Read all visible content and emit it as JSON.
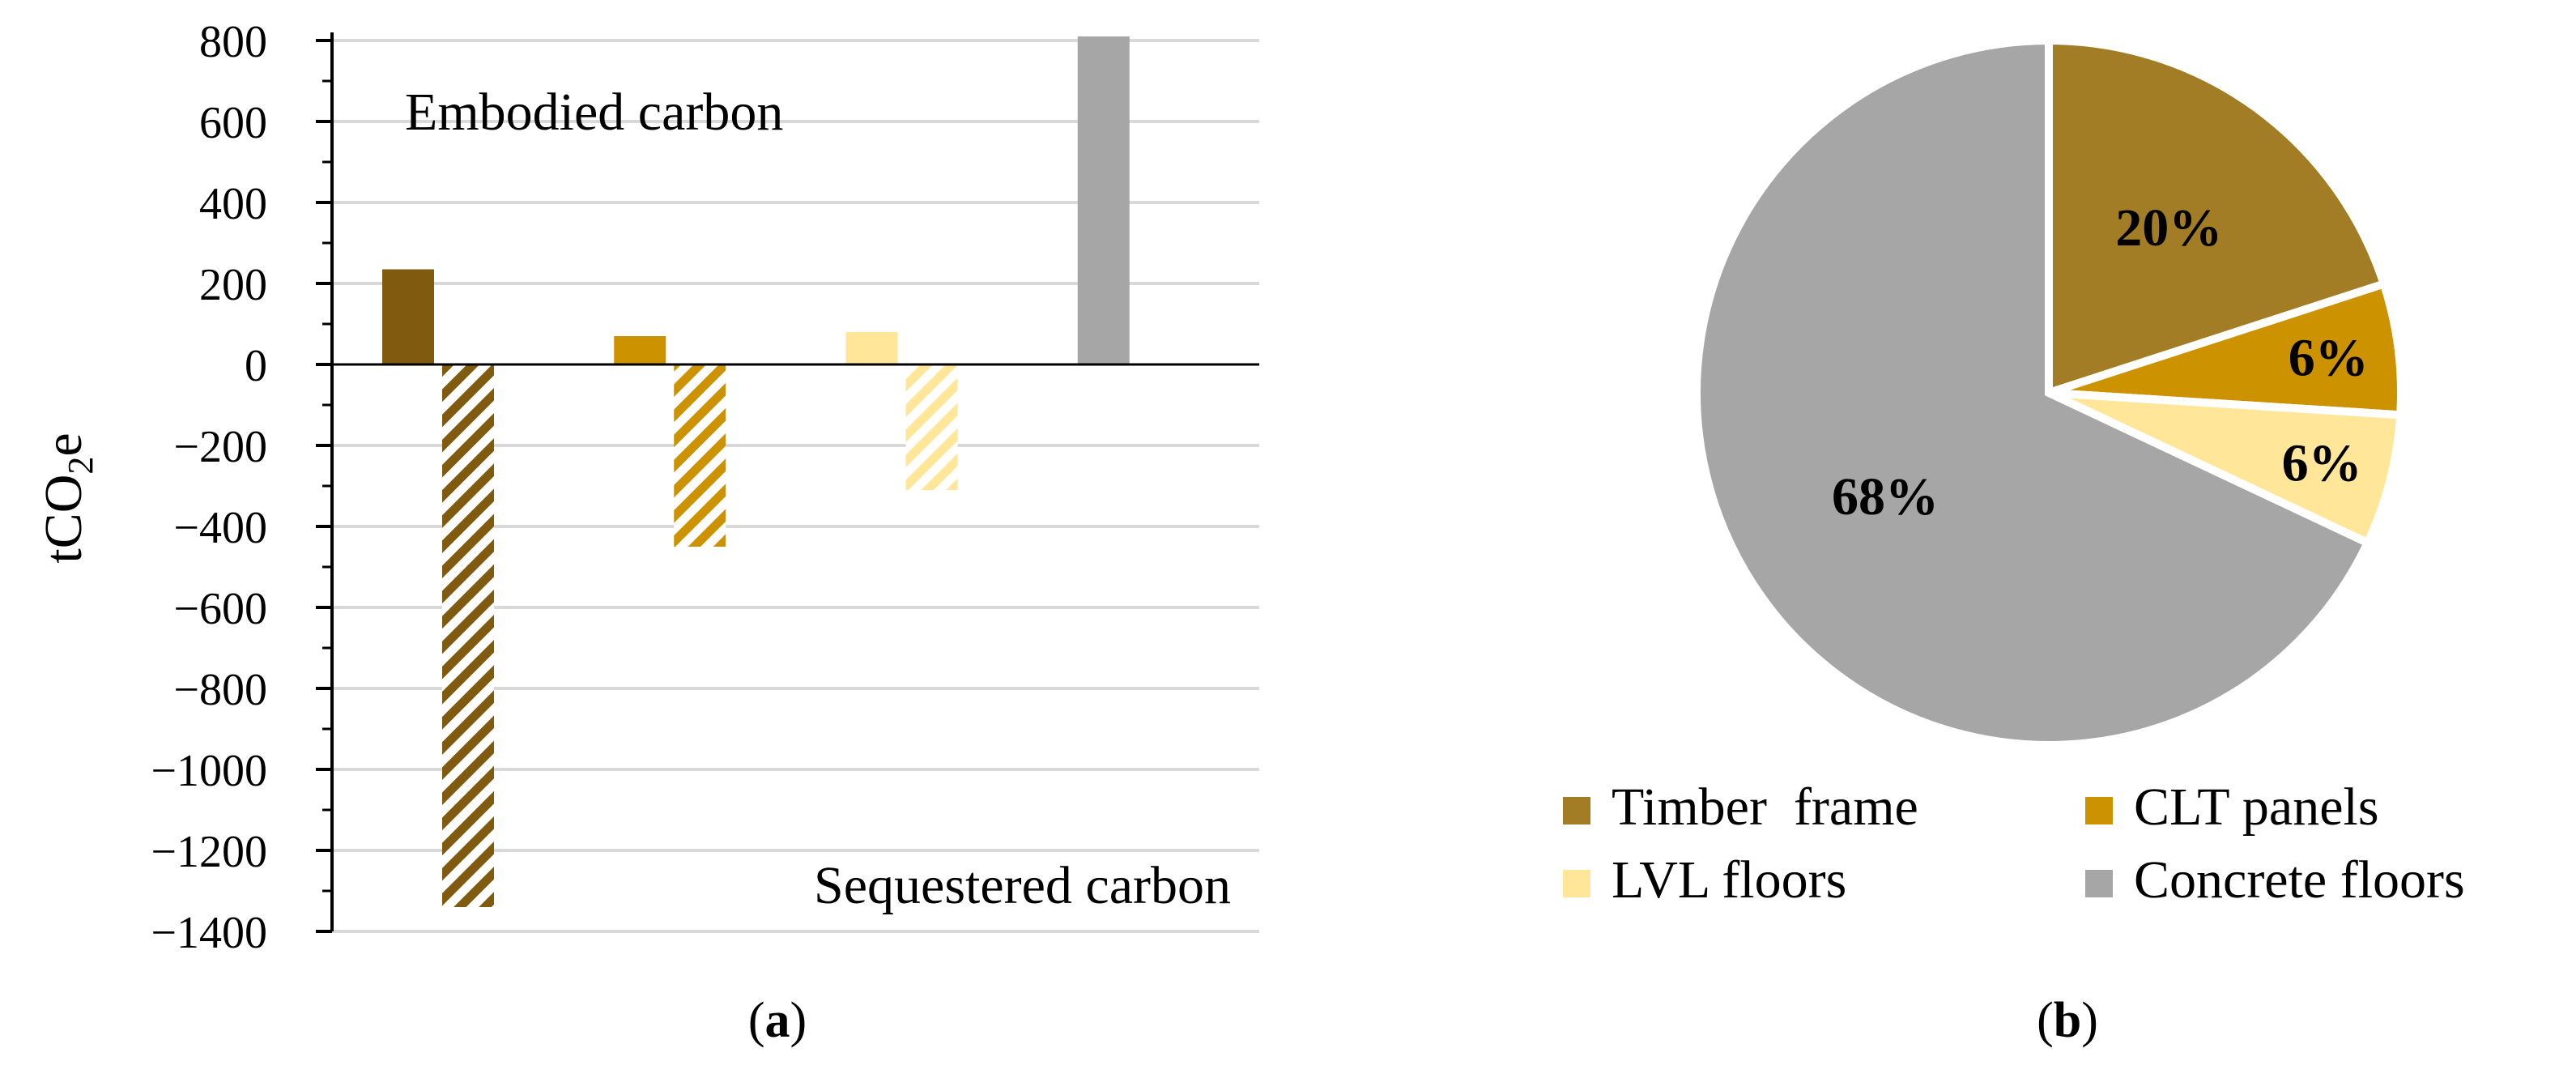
{
  "chart_data": [
    {
      "type": "bar",
      "panel_caption": "(a)",
      "panel_letter": "a",
      "title": "",
      "xlabel": "",
      "ylabel": "tCO2e",
      "ylabel_main": "tCO",
      "ylabel_sub": "2",
      "ylabel_end": "e",
      "ylim": [
        -1400,
        800
      ],
      "ytick_values": [
        800,
        600,
        400,
        200,
        0,
        -200,
        -400,
        -600,
        -800,
        -1000,
        -1200,
        -1400
      ],
      "ytick_labels": [
        "800",
        "600",
        "400",
        "200",
        "0",
        "−200",
        "−400",
        "−600",
        "−800",
        "−1000",
        "−1200",
        "−1400"
      ],
      "grid": true,
      "annotations": {
        "top": "Embodied carbon",
        "bottom": "Sequestered carbon"
      },
      "categories": [
        "Timber frame",
        "CLT panels",
        "LVL floors",
        "Concrete floors"
      ],
      "series": [
        {
          "name": "Embodied carbon",
          "pattern": "solid",
          "values": [
            235,
            70,
            80,
            810
          ],
          "colors": [
            "#805a0f",
            "#cc9200",
            "#ffe699",
            "#a6a6a6"
          ]
        },
        {
          "name": "Sequestered carbon",
          "pattern": "hatched",
          "values": [
            -1340,
            -450,
            -310,
            null
          ],
          "colors": [
            "#805a0f",
            "#cc9200",
            "#ffe699",
            null
          ]
        }
      ]
    },
    {
      "type": "pie",
      "panel_caption": "(b)",
      "panel_letter": "b",
      "title": "",
      "slices": [
        {
          "name": "Timber  frame",
          "value": 20,
          "label": "20%",
          "color": "#a37d26"
        },
        {
          "name": "CLT panels",
          "value": 6,
          "label": "6%",
          "color": "#cc9200"
        },
        {
          "name": "LVL floors",
          "value": 6,
          "label": "6%",
          "color": "#ffe699"
        },
        {
          "name": "Concrete floors",
          "value": 68,
          "label": "68%",
          "color": "#a6a6a6"
        }
      ],
      "legend_position": "bottom"
    }
  ]
}
